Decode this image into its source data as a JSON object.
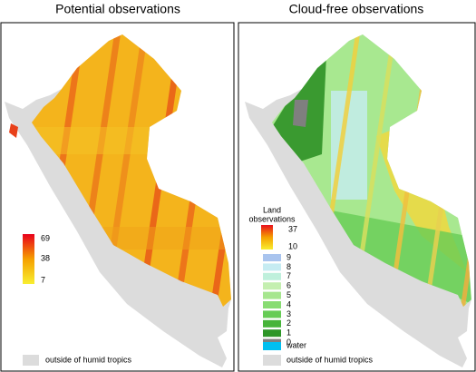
{
  "left_panel": {
    "title": "Potential observations",
    "gradient_labels": [
      69,
      38,
      7
    ],
    "outside_label": "outside of humid tropics"
  },
  "right_panel": {
    "title": "Cloud-free observations",
    "legend_title_lines": [
      "Land",
      "observations"
    ],
    "gradient_labels": [
      37,
      10
    ],
    "classes": [
      {
        "label": 9,
        "color": "#a9c4ee"
      },
      {
        "label": 8,
        "color": "#c6ecf2"
      },
      {
        "label": 7,
        "color": "#bff0dc"
      },
      {
        "label": 6,
        "color": "#c4efb0"
      },
      {
        "label": 5,
        "color": "#a6e68e"
      },
      {
        "label": 4,
        "color": "#88dc72"
      },
      {
        "label": 3,
        "color": "#66cc55"
      },
      {
        "label": 2,
        "color": "#47b43a"
      },
      {
        "label": 1,
        "color": "#2d9627"
      },
      {
        "label": 0,
        "color": "#7f7f7f"
      }
    ],
    "water_label": "water",
    "outside_label": "outside of humid tropics"
  }
}
